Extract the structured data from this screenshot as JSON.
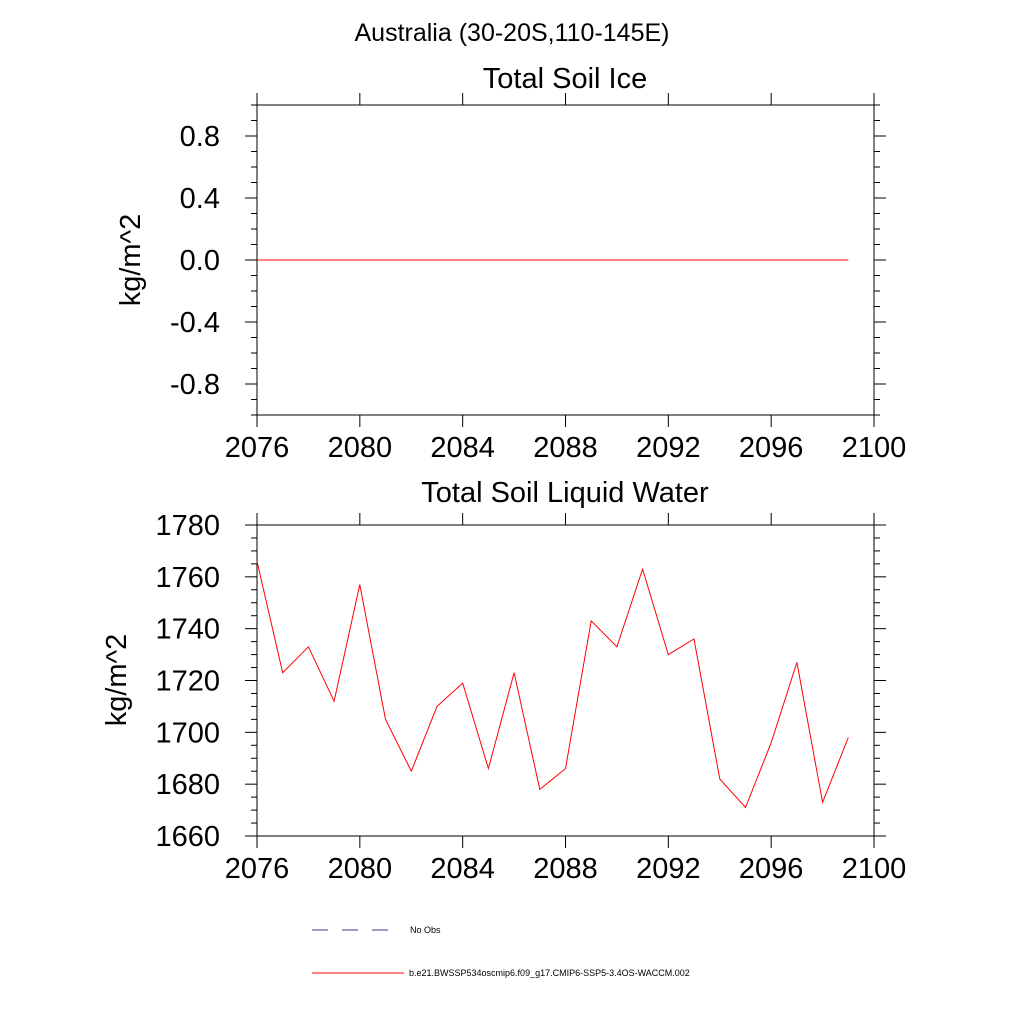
{
  "figure_title": "Australia (30-20S,110-145E)",
  "legend": {
    "items": [
      {
        "label": "No Obs",
        "style": "dashed",
        "color": "#3a3a8c"
      },
      {
        "label": "b.e21.BWSSP534oscmip6.f09_g17.CMIP6-SSP5-3.4OS-WACCM.002",
        "style": "solid",
        "color": "#ff0000"
      }
    ]
  },
  "chart_data": [
    {
      "type": "line",
      "title": "Total Soil Ice",
      "xlabel": "",
      "ylabel": "kg/m^2",
      "xlim": [
        2076,
        2100
      ],
      "ylim": [
        -1.0,
        1.0
      ],
      "x_ticks": [
        2076,
        2080,
        2084,
        2088,
        2092,
        2096,
        2100
      ],
      "y_ticks": [
        -0.8,
        -0.4,
        0.0,
        0.4,
        0.8
      ],
      "y_tick_labels": [
        "-0.8",
        "-0.4",
        "0.0",
        "0.4",
        "0.8"
      ],
      "series": [
        {
          "color": "#ff0000",
          "x": [
            2076,
            2077,
            2078,
            2079,
            2080,
            2081,
            2082,
            2083,
            2084,
            2085,
            2086,
            2087,
            2088,
            2089,
            2090,
            2091,
            2092,
            2093,
            2094,
            2095,
            2096,
            2097,
            2098,
            2099
          ],
          "values": [
            0,
            0,
            0,
            0,
            0,
            0,
            0,
            0,
            0,
            0,
            0,
            0,
            0,
            0,
            0,
            0,
            0,
            0,
            0,
            0,
            0,
            0,
            0,
            0
          ]
        }
      ]
    },
    {
      "type": "line",
      "title": "Total Soil Liquid Water",
      "xlabel": "",
      "ylabel": "kg/m^2",
      "xlim": [
        2076,
        2100
      ],
      "ylim": [
        1660,
        1780
      ],
      "x_ticks": [
        2076,
        2080,
        2084,
        2088,
        2092,
        2096,
        2100
      ],
      "y_ticks": [
        1660,
        1680,
        1700,
        1720,
        1740,
        1760,
        1780
      ],
      "y_tick_labels": [
        "1660",
        "1680",
        "1700",
        "1720",
        "1740",
        "1760",
        "1780"
      ],
      "series": [
        {
          "color": "#ff0000",
          "x": [
            2076,
            2077,
            2078,
            2079,
            2080,
            2081,
            2082,
            2083,
            2084,
            2085,
            2086,
            2087,
            2088,
            2089,
            2090,
            2091,
            2092,
            2093,
            2094,
            2095,
            2096,
            2097,
            2098,
            2099
          ],
          "values": [
            1766,
            1723,
            1733,
            1712,
            1757,
            1705,
            1685,
            1710,
            1719,
            1686,
            1723,
            1678,
            1686,
            1743,
            1733,
            1763,
            1730,
            1736,
            1682,
            1671,
            1696,
            1727,
            1673,
            1698
          ]
        }
      ]
    }
  ]
}
